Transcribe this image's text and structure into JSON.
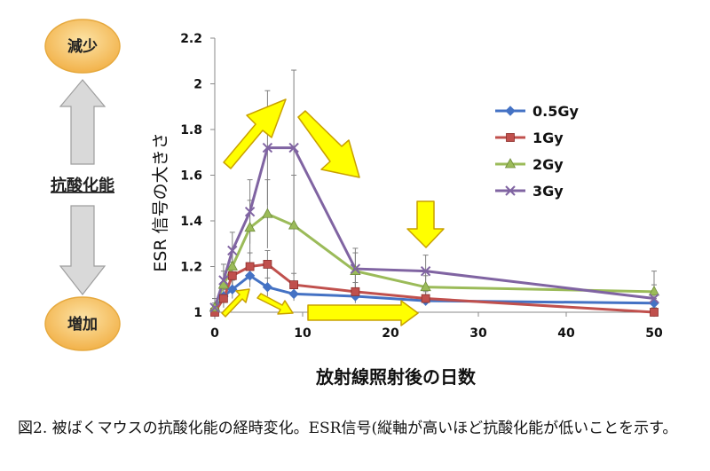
{
  "side_panel": {
    "top_label": "減少",
    "middle_label": "抗酸化能",
    "bottom_label": "増加"
  },
  "caption": "図2. 被ばくマウスの抗酸化能の経時変化。ESR信号(縦軸が高いほど抗酸化能が低いことを示す。",
  "colors": {
    "oval_fill": "#F7C56C",
    "oval_stroke": "#E6A93E",
    "side_arrow_fill": "#D9D9D9",
    "side_arrow_stroke": "#9E9E9E",
    "callout_arrow_fill": "#FFFF00",
    "callout_arrow_stroke": "#C9A000",
    "error_bar": "#808080"
  },
  "chart_data": {
    "type": "line",
    "xlabel": "放射線照射後の日数",
    "ylabel": "ESR 信号の大きさ",
    "xlim": [
      0,
      50
    ],
    "ylim": [
      1,
      2.2
    ],
    "xticks": [
      0,
      10,
      20,
      30,
      40,
      50
    ],
    "yticks": [
      1,
      1.2,
      1.4,
      1.6,
      1.8,
      2,
      2.2
    ],
    "yticklabels": [
      "1",
      "1.2",
      "1.4",
      "1.6",
      "1.8",
      "2",
      "2.2"
    ],
    "grid": false,
    "legend_position": "upper-right",
    "series": [
      {
        "name": "0.5Gy",
        "color": "#4472C4",
        "marker": "diamond",
        "x": [
          0,
          1,
          2,
          4,
          6,
          9,
          16,
          24,
          50
        ],
        "y": [
          1.01,
          1.07,
          1.1,
          1.16,
          1.11,
          1.08,
          1.07,
          1.05,
          1.04
        ],
        "err": [
          0.03,
          0.03,
          0.04,
          0.05,
          0.04,
          0.03,
          0.03,
          0.02,
          0.02
        ]
      },
      {
        "name": "1Gy",
        "color": "#C0504D",
        "marker": "square",
        "x": [
          0,
          1,
          2,
          4,
          6,
          9,
          16,
          24,
          50
        ],
        "y": [
          1.0,
          1.06,
          1.16,
          1.2,
          1.21,
          1.12,
          1.09,
          1.06,
          1.0
        ],
        "err": [
          0.03,
          0.04,
          0.06,
          0.06,
          0.06,
          0.05,
          0.04,
          0.03,
          0.02
        ]
      },
      {
        "name": "2Gy",
        "color": "#9BBB59",
        "marker": "triangle",
        "x": [
          0,
          1,
          2,
          4,
          6,
          9,
          16,
          24,
          50
        ],
        "y": [
          1.02,
          1.12,
          1.2,
          1.37,
          1.43,
          1.38,
          1.18,
          1.11,
          1.09
        ],
        "err": [
          0.04,
          0.06,
          0.08,
          0.12,
          0.15,
          0.22,
          0.08,
          0.05,
          0.09
        ]
      },
      {
        "name": "3Gy",
        "color": "#8064A2",
        "marker": "x",
        "x": [
          0,
          1,
          2,
          4,
          6,
          9,
          16,
          24,
          50
        ],
        "y": [
          1.02,
          1.14,
          1.27,
          1.44,
          1.72,
          1.72,
          1.19,
          1.18,
          1.06
        ],
        "err": [
          0.04,
          0.07,
          0.08,
          0.14,
          0.25,
          0.34,
          0.09,
          0.07,
          0.06
        ]
      }
    ]
  }
}
